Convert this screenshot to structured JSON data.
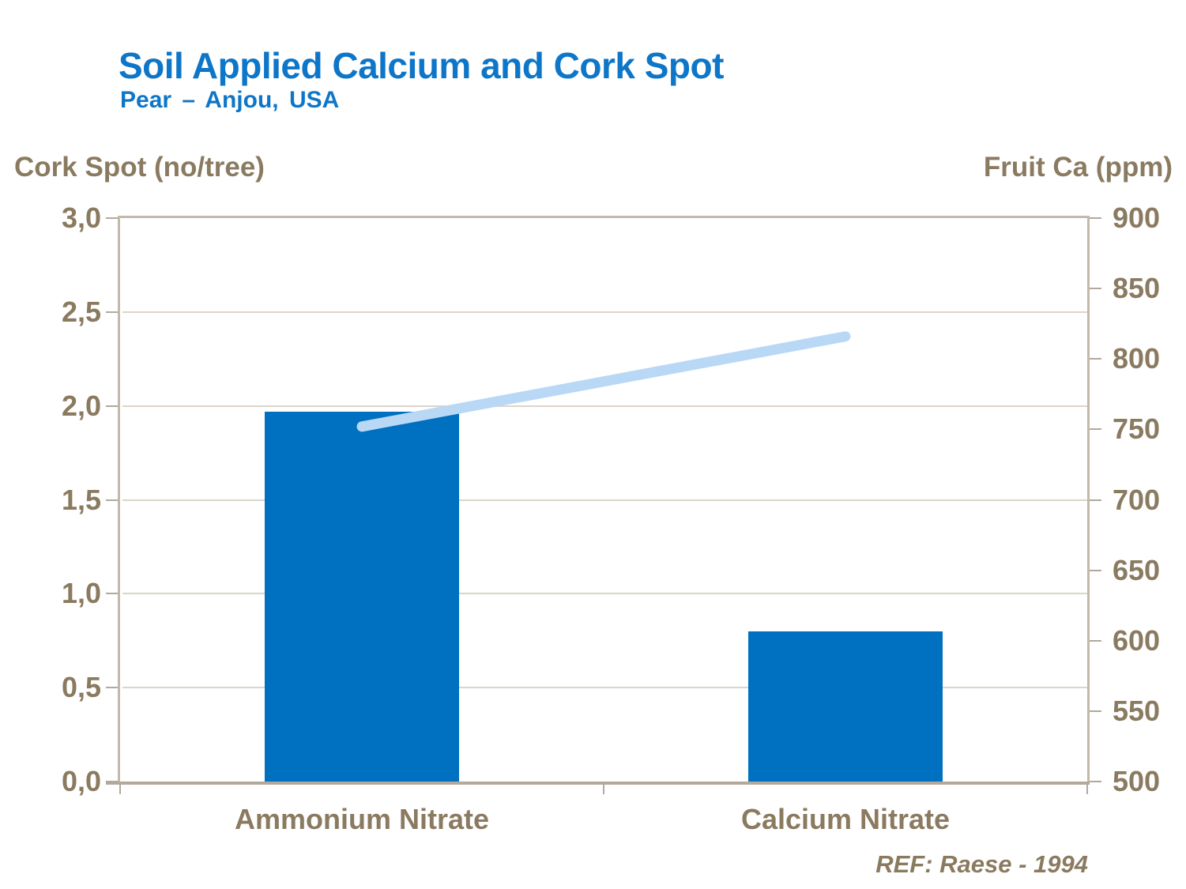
{
  "slide": {
    "title": "Soil Applied Calcium and Cork Spot",
    "subtitle": "Pear – Anjou, USA",
    "footnote": "REF: Raese - 1994"
  },
  "colors": {
    "title_blue": "#0e76c8",
    "bar_blue": "#0070c0",
    "line_light_blue": "#b9d8f6",
    "text_brown": "#8a7a60",
    "axis_tan": "#b2a89c",
    "border_tan": "#c3b9ab",
    "gridline_tan": "#dcd5c9"
  },
  "chart_data": {
    "type": "bar",
    "combo": "bar + line, dual axis",
    "title": "Soil Applied Calcium and Cork Spot",
    "subtitle": "Pear – Anjou, USA",
    "categories": [
      "Ammonium Nitrate",
      "Calcium Nitrate"
    ],
    "series": [
      {
        "name": "Cork Spot (no/tree)",
        "chart": "bar",
        "axis": "left",
        "values": [
          1.97,
          0.8
        ]
      },
      {
        "name": "Fruit Ca (ppm)",
        "chart": "line",
        "axis": "right",
        "values": [
          752,
          816
        ]
      }
    ],
    "left_axis": {
      "label": "Cork Spot (no/tree)",
      "min": 0.0,
      "max": 3.0,
      "step": 0.5,
      "tick_labels": [
        "3,0",
        "2,5",
        "2,0",
        "1,5",
        "1,0",
        "0,5",
        "0,0"
      ]
    },
    "right_axis": {
      "label": "Fruit Ca (ppm)",
      "min": 500,
      "max": 900,
      "step": 50,
      "tick_labels": [
        "900",
        "850",
        "800",
        "750",
        "700",
        "650",
        "600",
        "550",
        "500"
      ]
    },
    "grid": "horizontal gridlines at each 0.5 step of left axis",
    "legend": "none",
    "footnote": "REF: Raese - 1994"
  }
}
